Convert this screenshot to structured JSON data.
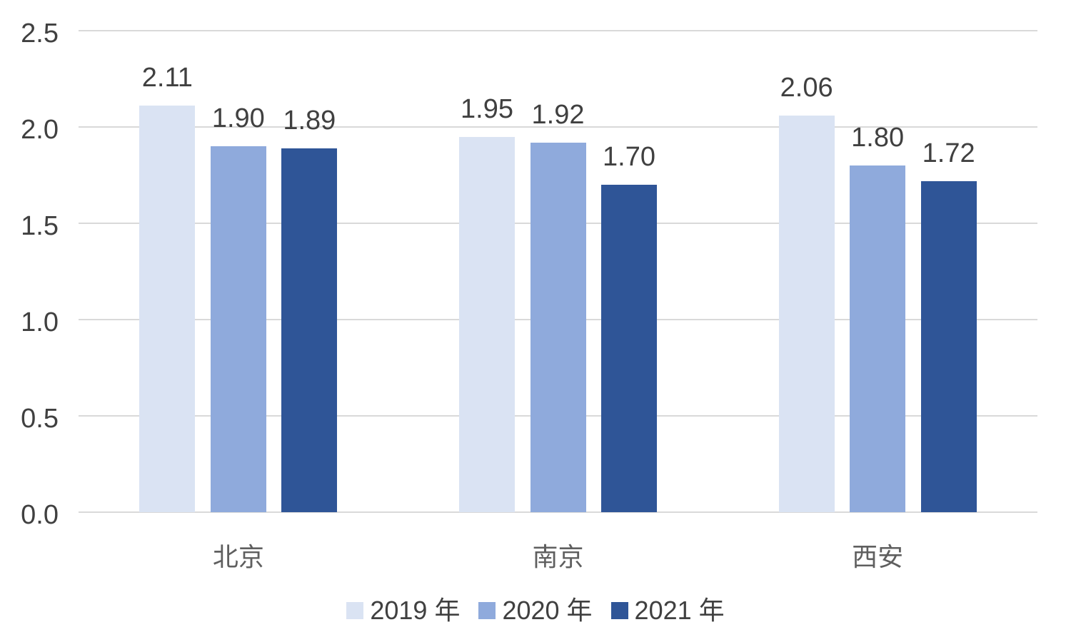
{
  "chart_data": {
    "type": "bar",
    "title": "",
    "categories": [
      "北京",
      "南京",
      "西安"
    ],
    "series": [
      {
        "name": "2019 年",
        "color": "#DAE3F3",
        "values": [
          2.11,
          1.95,
          2.06
        ]
      },
      {
        "name": "2020 年",
        "color": "#8FAADC",
        "values": [
          1.9,
          1.92,
          1.8
        ]
      },
      {
        "name": "2021 年",
        "color": "#2F5597",
        "values": [
          1.89,
          1.7,
          1.72
        ]
      }
    ],
    "ylim": [
      0,
      2.5
    ],
    "yticks": [
      0,
      0.5,
      1,
      1.5,
      2,
      2.5
    ],
    "ytick_decimals": 1,
    "value_label_decimals": 2,
    "grid": true,
    "legend_position": "bottom",
    "grid_color": "#D9D9D9",
    "value_text_color": "#404040",
    "axis_text_color": "#404040",
    "category_text_color": "#5F5F5F",
    "background": "#FFFFFF"
  }
}
